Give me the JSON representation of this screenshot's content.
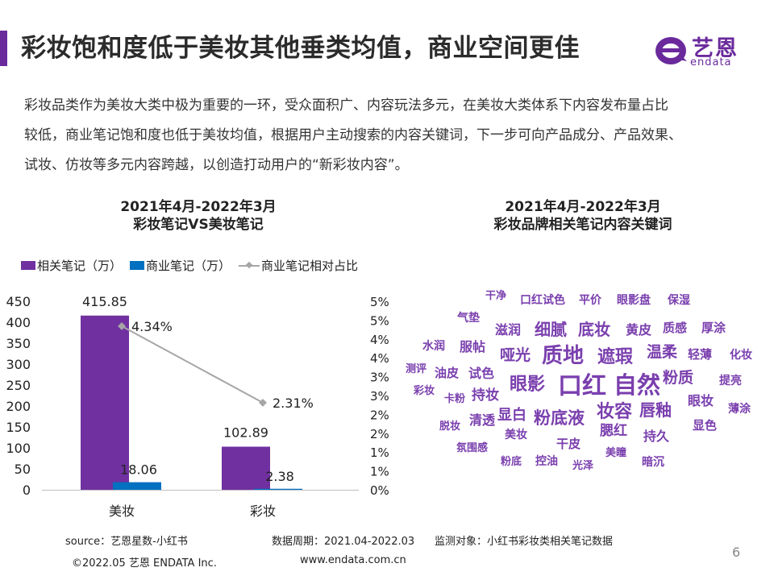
{
  "header": {
    "title": "彩妆饱和度低于美妆其他垂类均值，商业空间更佳",
    "logo_cn": "艺恩",
    "logo_en": "endata"
  },
  "intro": {
    "line1": "彩妆品类作为美妆大类中极为重要的一环，受众面积广、内容玩法多元，在美妆大类体系下内容发布量占比",
    "line2": "较低，商业笔记饱和度也低于美妆均值，根据用户主动搜索的内容关键词，下一步可向产品成分、产品效果、",
    "line3": "试妆、仿妆等多元内容跨越，以创造打动用户的“新彩妆内容”。"
  },
  "left_chart": {
    "title_line1": "2021年4月-2022年3月",
    "title_line2": "彩妆笔记VS美妆笔记",
    "legend": {
      "related": "相关笔记（万）",
      "commercial": "商业笔记（万）",
      "ratio": "商业笔记相对占比"
    }
  },
  "right_chart": {
    "title_line1": "2021年4月-2022年3月",
    "title_line2": "彩妆品牌相关笔记内容关键词"
  },
  "chart_data": [
    {
      "type": "bar",
      "title": "2021年4月-2022年3月 彩妆笔记VS美妆笔记",
      "categories": [
        "美妆",
        "彩妆"
      ],
      "series": [
        {
          "name": "相关笔记（万）",
          "values": [
            415.85,
            102.89
          ],
          "color": "#7030a0",
          "axis": "left"
        },
        {
          "name": "商业笔记（万）",
          "values": [
            18.06,
            2.38
          ],
          "color": "#0070c0",
          "axis": "left"
        },
        {
          "name": "商业笔记相对占比",
          "values": [
            4.34,
            2.31
          ],
          "color": "#a6a6a6",
          "axis": "right",
          "type": "line",
          "unit": "%"
        }
      ],
      "data_labels": {
        "related": [
          "415.85",
          "102.89"
        ],
        "commercial": [
          "18.06",
          "2.38"
        ],
        "ratio": [
          "4.34%",
          "2.31%"
        ]
      },
      "ylim": [
        0,
        450
      ],
      "yticks": [
        "0",
        "50",
        "100",
        "150",
        "200",
        "250",
        "300",
        "350",
        "400",
        "450"
      ],
      "y2lim": [
        0,
        5
      ],
      "y2ticks": [
        "0%",
        "1%",
        "1%",
        "2%",
        "2%",
        "3%",
        "3%",
        "4%",
        "4%",
        "5%",
        "5%"
      ],
      "legend_position": "top"
    }
  ],
  "word_cloud": [
    {
      "text": "干净",
      "size": 13
    },
    {
      "text": "口红试色",
      "size": 14
    },
    {
      "text": "平价",
      "size": 14
    },
    {
      "text": "眼影盘",
      "size": 14
    },
    {
      "text": "保湿",
      "size": 14
    },
    {
      "text": "气垫",
      "size": 14
    },
    {
      "text": "滋润",
      "size": 16
    },
    {
      "text": "细腻",
      "size": 20
    },
    {
      "text": "底妆",
      "size": 20
    },
    {
      "text": "黄皮",
      "size": 16
    },
    {
      "text": "质感",
      "size": 15
    },
    {
      "text": "厚涂",
      "size": 15
    },
    {
      "text": "水润",
      "size": 14
    },
    {
      "text": "服帖",
      "size": 16
    },
    {
      "text": "哑光",
      "size": 19
    },
    {
      "text": "质地",
      "size": 26
    },
    {
      "text": "遮瑕",
      "size": 22
    },
    {
      "text": "温柔",
      "size": 19
    },
    {
      "text": "轻薄",
      "size": 15
    },
    {
      "text": "化妆",
      "size": 14
    },
    {
      "text": "测评",
      "size": 13
    },
    {
      "text": "油皮",
      "size": 15
    },
    {
      "text": "试色",
      "size": 16
    },
    {
      "text": "眼影",
      "size": 22
    },
    {
      "text": "口红",
      "size": 30
    },
    {
      "text": "自然",
      "size": 29
    },
    {
      "text": "粉质",
      "size": 19
    },
    {
      "text": "提亮",
      "size": 14
    },
    {
      "text": "彩妆",
      "size": 13
    },
    {
      "text": "卡粉",
      "size": 13
    },
    {
      "text": "持妆",
      "size": 17
    },
    {
      "text": "眼妆",
      "size": 16
    },
    {
      "text": "薄涂",
      "size": 14
    },
    {
      "text": "脱妆",
      "size": 13
    },
    {
      "text": "清透",
      "size": 16
    },
    {
      "text": "显白",
      "size": 18
    },
    {
      "text": "粉底液",
      "size": 21
    },
    {
      "text": "妆容",
      "size": 22
    },
    {
      "text": "唇釉",
      "size": 20
    },
    {
      "text": "显色",
      "size": 15
    },
    {
      "text": "美妆",
      "size": 14
    },
    {
      "text": "腮红",
      "size": 17
    },
    {
      "text": "持久",
      "size": 16
    },
    {
      "text": "氛围感",
      "size": 13
    },
    {
      "text": "干皮",
      "size": 15
    },
    {
      "text": "美瞳",
      "size": 13
    },
    {
      "text": "粉底",
      "size": 13
    },
    {
      "text": "控油",
      "size": 14
    },
    {
      "text": "光泽",
      "size": 13
    },
    {
      "text": "暗沉",
      "size": 14
    }
  ],
  "footer": {
    "source": "source：艺恩星数-小红书",
    "period": "数据周期：2021.04-2022.03",
    "monitor": "监测对象：小红书彩妆类相关笔记数据",
    "copyright": "©2022.05 艺恩 ENDATA Inc.",
    "website": "www.endata.com.cn",
    "page": "6"
  },
  "colors": {
    "accent": "#6a2a9c",
    "related_bar": "#7030a0",
    "commercial_bar": "#0070c0",
    "ratio_line": "#a6a6a6",
    "cloud_word": "#7a3fae"
  }
}
